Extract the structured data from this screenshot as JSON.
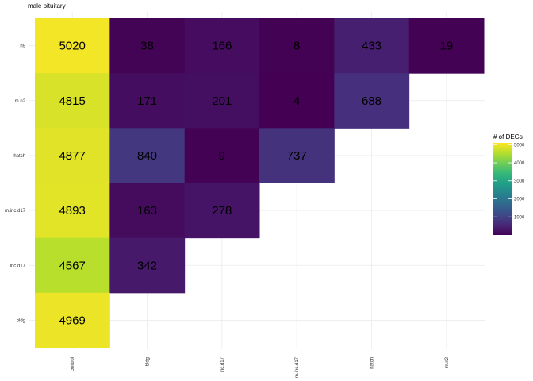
{
  "chart_data": {
    "type": "heatmap",
    "title": "male pituitary",
    "x_categories": [
      "control",
      "bldg",
      "inc.d17",
      "m.inc.d17",
      "hatch",
      "m.n2"
    ],
    "y_categories": [
      "n9",
      "m.n2",
      "hatch",
      "m.inc.d17",
      "inc.d17",
      "bldg"
    ],
    "cells": [
      {
        "x": "control",
        "y": "n9",
        "value": 5020
      },
      {
        "x": "bldg",
        "y": "n9",
        "value": 38
      },
      {
        "x": "inc.d17",
        "y": "n9",
        "value": 166
      },
      {
        "x": "m.inc.d17",
        "y": "n9",
        "value": 8
      },
      {
        "x": "hatch",
        "y": "n9",
        "value": 433
      },
      {
        "x": "m.n2",
        "y": "n9",
        "value": 19
      },
      {
        "x": "control",
        "y": "m.n2",
        "value": 4815
      },
      {
        "x": "bldg",
        "y": "m.n2",
        "value": 171
      },
      {
        "x": "inc.d17",
        "y": "m.n2",
        "value": 201
      },
      {
        "x": "m.inc.d17",
        "y": "m.n2",
        "value": 4
      },
      {
        "x": "hatch",
        "y": "m.n2",
        "value": 688
      },
      {
        "x": "control",
        "y": "hatch",
        "value": 4877
      },
      {
        "x": "bldg",
        "y": "hatch",
        "value": 840
      },
      {
        "x": "inc.d17",
        "y": "hatch",
        "value": 9
      },
      {
        "x": "m.inc.d17",
        "y": "hatch",
        "value": 737
      },
      {
        "x": "control",
        "y": "m.inc.d17",
        "value": 4893
      },
      {
        "x": "bldg",
        "y": "m.inc.d17",
        "value": 163
      },
      {
        "x": "inc.d17",
        "y": "m.inc.d17",
        "value": 278
      },
      {
        "x": "control",
        "y": "inc.d17",
        "value": 4567
      },
      {
        "x": "bldg",
        "y": "inc.d17",
        "value": 342
      },
      {
        "x": "control",
        "y": "bldg",
        "value": 4969
      }
    ],
    "legend": {
      "title": "# of DEGs",
      "ticks": [
        1000,
        2000,
        3000,
        4000,
        5000
      ],
      "range": [
        0,
        5100
      ],
      "colormap": "viridis"
    },
    "grid": true
  }
}
